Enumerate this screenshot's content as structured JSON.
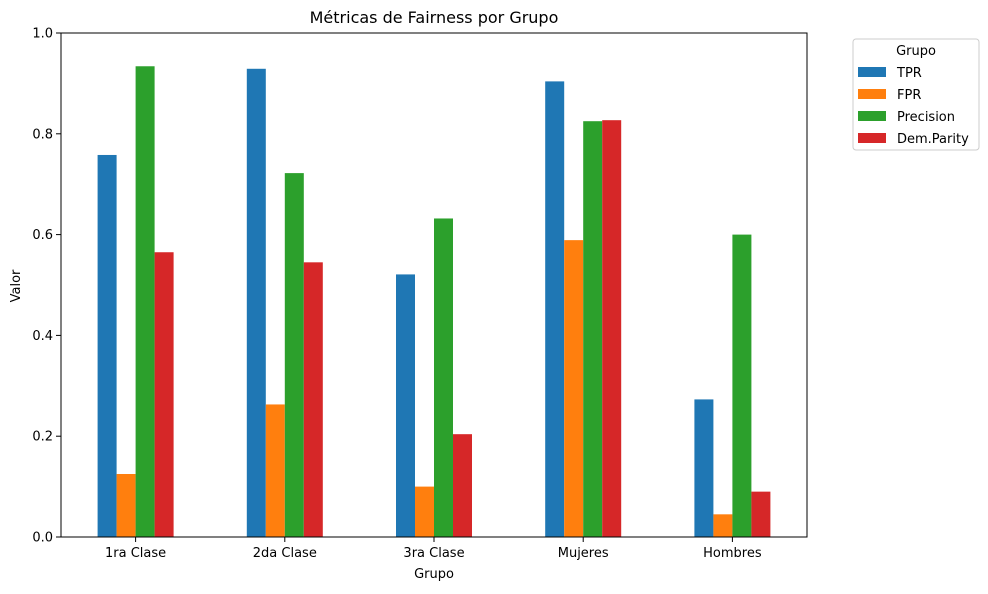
{
  "chart_data": {
    "type": "bar",
    "title": "Métricas de Fairness por Grupo",
    "xlabel": "Grupo",
    "ylabel": "Valor",
    "categories": [
      "1ra Clase",
      "2da Clase",
      "3ra Clase",
      "Mujeres",
      "Hombres"
    ],
    "series": [
      {
        "name": "TPR",
        "color": "#1f77b4",
        "values": [
          0.758,
          0.929,
          0.521,
          0.904,
          0.273
        ]
      },
      {
        "name": "FPR",
        "color": "#ff7f0e",
        "values": [
          0.125,
          0.263,
          0.1,
          0.589,
          0.045
        ]
      },
      {
        "name": "Precision",
        "color": "#2ca02c",
        "values": [
          0.934,
          0.722,
          0.632,
          0.825,
          0.6
        ]
      },
      {
        "name": "Dem.Parity",
        "color": "#d62728",
        "values": [
          0.565,
          0.545,
          0.204,
          0.827,
          0.09
        ]
      }
    ],
    "ylim": [
      0,
      1
    ],
    "yticks": [
      "0.0",
      "0.2",
      "0.4",
      "0.6",
      "0.8",
      "1.0"
    ],
    "grid": false,
    "legend": {
      "title": "Grupo",
      "placement": "outside-top-right"
    }
  }
}
